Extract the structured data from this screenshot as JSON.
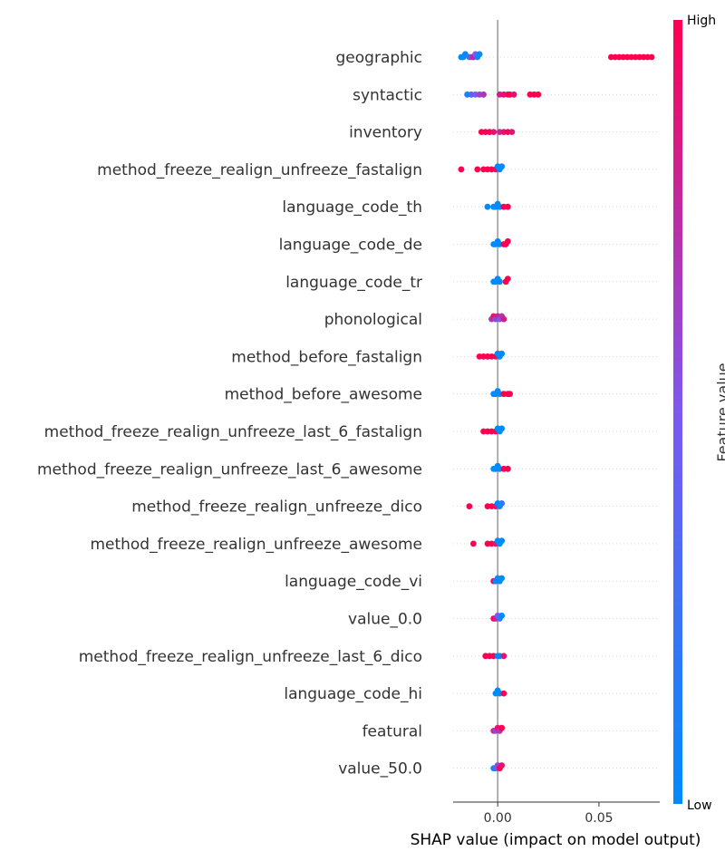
{
  "chart_data": {
    "type": "scatter",
    "subtype": "shap_beeswarm_summary",
    "xlabel": "SHAP value (impact on model output)",
    "xticks": [
      0.0,
      0.05
    ],
    "xtick_labels": [
      "0.00",
      "0.05"
    ],
    "xlim": [
      -0.022,
      0.08
    ],
    "zero_line": true,
    "grid": "dotted horizontal row guides",
    "colorbar": {
      "title": "Feature value",
      "high_label": "High",
      "low_label": "Low",
      "low_color": "#008bfb",
      "high_color": "#ff0051"
    },
    "features": [
      {
        "name": "geographic",
        "points": [
          {
            "x": -0.018,
            "v": 0.0
          },
          {
            "x": -0.017,
            "v": 0.0
          },
          {
            "x": -0.016,
            "v": 0.05
          },
          {
            "x": -0.014,
            "v": 0.3
          },
          {
            "x": -0.013,
            "v": 0.6
          },
          {
            "x": -0.012,
            "v": 0.8
          },
          {
            "x": -0.011,
            "v": 0.5
          },
          {
            "x": -0.01,
            "v": 0.1
          },
          {
            "x": -0.009,
            "v": 0.0
          },
          {
            "x": 0.056,
            "v": 1.0
          },
          {
            "x": 0.058,
            "v": 1.0
          },
          {
            "x": 0.06,
            "v": 1.0
          },
          {
            "x": 0.062,
            "v": 1.0
          },
          {
            "x": 0.064,
            "v": 1.0
          },
          {
            "x": 0.066,
            "v": 1.0
          },
          {
            "x": 0.068,
            "v": 1.0
          },
          {
            "x": 0.07,
            "v": 1.0
          },
          {
            "x": 0.072,
            "v": 1.0
          },
          {
            "x": 0.074,
            "v": 1.0
          },
          {
            "x": 0.076,
            "v": 1.0
          }
        ]
      },
      {
        "name": "syntactic",
        "points": [
          {
            "x": -0.015,
            "v": 0.1
          },
          {
            "x": -0.013,
            "v": 0.3
          },
          {
            "x": -0.011,
            "v": 0.5
          },
          {
            "x": -0.009,
            "v": 0.6
          },
          {
            "x": -0.007,
            "v": 0.7
          },
          {
            "x": 0.001,
            "v": 0.85
          },
          {
            "x": 0.003,
            "v": 0.9
          },
          {
            "x": 0.005,
            "v": 0.95
          },
          {
            "x": 0.006,
            "v": 1.0
          },
          {
            "x": 0.008,
            "v": 0.9
          },
          {
            "x": 0.016,
            "v": 1.0
          },
          {
            "x": 0.018,
            "v": 1.0
          },
          {
            "x": 0.02,
            "v": 1.0
          }
        ]
      },
      {
        "name": "inventory",
        "points": [
          {
            "x": -0.008,
            "v": 1.0
          },
          {
            "x": -0.006,
            "v": 1.0
          },
          {
            "x": -0.004,
            "v": 1.0
          },
          {
            "x": -0.002,
            "v": 0.9
          },
          {
            "x": 0.001,
            "v": 0.8
          },
          {
            "x": 0.003,
            "v": 0.9
          },
          {
            "x": 0.005,
            "v": 1.0
          },
          {
            "x": 0.007,
            "v": 0.9
          }
        ]
      },
      {
        "name": "method_freeze_realign_unfreeze_fastalign",
        "points": [
          {
            "x": -0.018,
            "v": 1.0
          },
          {
            "x": -0.01,
            "v": 1.0
          },
          {
            "x": -0.007,
            "v": 1.0
          },
          {
            "x": -0.005,
            "v": 1.0
          },
          {
            "x": -0.003,
            "v": 1.0
          },
          {
            "x": -0.001,
            "v": 1.0
          },
          {
            "x": 0.0,
            "v": 0.0
          },
          {
            "x": 0.001,
            "v": 0.0
          },
          {
            "x": 0.002,
            "v": 0.05
          }
        ]
      },
      {
        "name": "language_code_th",
        "points": [
          {
            "x": -0.005,
            "v": 0.0
          },
          {
            "x": -0.002,
            "v": 0.0
          },
          {
            "x": -0.001,
            "v": 0.0
          },
          {
            "x": 0.0,
            "v": 0.0
          },
          {
            "x": 0.001,
            "v": 0.0
          },
          {
            "x": 0.003,
            "v": 1.0
          },
          {
            "x": 0.005,
            "v": 1.0
          }
        ]
      },
      {
        "name": "language_code_de",
        "points": [
          {
            "x": -0.002,
            "v": 0.0
          },
          {
            "x": -0.001,
            "v": 0.0
          },
          {
            "x": 0.0,
            "v": 0.0
          },
          {
            "x": 0.001,
            "v": 0.0
          },
          {
            "x": 0.003,
            "v": 1.0
          },
          {
            "x": 0.004,
            "v": 1.0
          },
          {
            "x": 0.005,
            "v": 1.0
          }
        ]
      },
      {
        "name": "language_code_tr",
        "points": [
          {
            "x": -0.002,
            "v": 0.0
          },
          {
            "x": -0.001,
            "v": 0.0
          },
          {
            "x": 0.0,
            "v": 0.0
          },
          {
            "x": 0.001,
            "v": 0.0
          },
          {
            "x": 0.004,
            "v": 1.0
          },
          {
            "x": 0.005,
            "v": 1.0
          }
        ]
      },
      {
        "name": "phonological",
        "points": [
          {
            "x": -0.003,
            "v": 0.7
          },
          {
            "x": -0.002,
            "v": 0.9
          },
          {
            "x": -0.001,
            "v": 0.6
          },
          {
            "x": 0.0,
            "v": 0.8
          },
          {
            "x": 0.001,
            "v": 0.5
          },
          {
            "x": 0.002,
            "v": 0.7
          },
          {
            "x": 0.003,
            "v": 0.85
          }
        ]
      },
      {
        "name": "method_before_fastalign",
        "points": [
          {
            "x": -0.009,
            "v": 1.0
          },
          {
            "x": -0.007,
            "v": 1.0
          },
          {
            "x": -0.005,
            "v": 1.0
          },
          {
            "x": -0.003,
            "v": 1.0
          },
          {
            "x": -0.001,
            "v": 1.0
          },
          {
            "x": 0.0,
            "v": 0.0
          },
          {
            "x": 0.001,
            "v": 0.0
          },
          {
            "x": 0.002,
            "v": 0.0
          }
        ]
      },
      {
        "name": "method_before_awesome",
        "points": [
          {
            "x": -0.002,
            "v": 0.0
          },
          {
            "x": -0.001,
            "v": 0.0
          },
          {
            "x": 0.0,
            "v": 0.0
          },
          {
            "x": 0.001,
            "v": 0.0
          },
          {
            "x": 0.003,
            "v": 1.0
          },
          {
            "x": 0.005,
            "v": 1.0
          },
          {
            "x": 0.006,
            "v": 1.0
          }
        ]
      },
      {
        "name": "method_freeze_realign_unfreeze_last_6_fastalign",
        "points": [
          {
            "x": -0.007,
            "v": 1.0
          },
          {
            "x": -0.005,
            "v": 1.0
          },
          {
            "x": -0.003,
            "v": 1.0
          },
          {
            "x": -0.001,
            "v": 1.0
          },
          {
            "x": 0.0,
            "v": 0.0
          },
          {
            "x": 0.001,
            "v": 0.0
          },
          {
            "x": 0.002,
            "v": 0.0
          }
        ]
      },
      {
        "name": "method_freeze_realign_unfreeze_last_6_awesome",
        "points": [
          {
            "x": -0.002,
            "v": 0.0
          },
          {
            "x": -0.001,
            "v": 0.0
          },
          {
            "x": 0.0,
            "v": 0.0
          },
          {
            "x": 0.001,
            "v": 0.0
          },
          {
            "x": 0.003,
            "v": 1.0
          },
          {
            "x": 0.005,
            "v": 1.0
          }
        ]
      },
      {
        "name": "method_freeze_realign_unfreeze_dico",
        "points": [
          {
            "x": -0.014,
            "v": 1.0
          },
          {
            "x": -0.005,
            "v": 1.0
          },
          {
            "x": -0.003,
            "v": 1.0
          },
          {
            "x": -0.001,
            "v": 0.9
          },
          {
            "x": 0.0,
            "v": 0.0
          },
          {
            "x": 0.001,
            "v": 0.0
          },
          {
            "x": 0.002,
            "v": 0.2
          }
        ]
      },
      {
        "name": "method_freeze_realign_unfreeze_awesome",
        "points": [
          {
            "x": -0.012,
            "v": 1.0
          },
          {
            "x": -0.005,
            "v": 1.0
          },
          {
            "x": -0.003,
            "v": 1.0
          },
          {
            "x": -0.001,
            "v": 0.9
          },
          {
            "x": 0.0,
            "v": 0.0
          },
          {
            "x": 0.001,
            "v": 0.0
          },
          {
            "x": 0.002,
            "v": 0.0
          }
        ]
      },
      {
        "name": "language_code_vi",
        "points": [
          {
            "x": -0.002,
            "v": 1.0
          },
          {
            "x": -0.001,
            "v": 0.0
          },
          {
            "x": 0.0,
            "v": 0.0
          },
          {
            "x": 0.001,
            "v": 0.0
          },
          {
            "x": 0.002,
            "v": 0.0
          }
        ]
      },
      {
        "name": "value_0.0",
        "points": [
          {
            "x": -0.002,
            "v": 1.0
          },
          {
            "x": -0.001,
            "v": 0.8
          },
          {
            "x": 0.0,
            "v": 0.5
          },
          {
            "x": 0.001,
            "v": 0.2
          },
          {
            "x": 0.002,
            "v": 0.0
          }
        ]
      },
      {
        "name": "method_freeze_realign_unfreeze_last_6_dico",
        "points": [
          {
            "x": -0.006,
            "v": 1.0
          },
          {
            "x": -0.004,
            "v": 1.0
          },
          {
            "x": -0.002,
            "v": 1.0
          },
          {
            "x": 0.0,
            "v": 0.0
          },
          {
            "x": 0.001,
            "v": 0.0
          },
          {
            "x": 0.003,
            "v": 0.9
          }
        ]
      },
      {
        "name": "language_code_hi",
        "points": [
          {
            "x": -0.001,
            "v": 0.0
          },
          {
            "x": 0.0,
            "v": 0.0
          },
          {
            "x": 0.001,
            "v": 0.0
          },
          {
            "x": 0.003,
            "v": 1.0
          }
        ]
      },
      {
        "name": "featural",
        "points": [
          {
            "x": -0.002,
            "v": 0.8
          },
          {
            "x": -0.001,
            "v": 0.6
          },
          {
            "x": 0.0,
            "v": 0.9
          },
          {
            "x": 0.001,
            "v": 0.7
          },
          {
            "x": 0.002,
            "v": 1.0
          }
        ]
      },
      {
        "name": "value_50.0",
        "points": [
          {
            "x": -0.002,
            "v": 0.0
          },
          {
            "x": -0.001,
            "v": 0.3
          },
          {
            "x": 0.0,
            "v": 0.6
          },
          {
            "x": 0.001,
            "v": 1.0
          },
          {
            "x": 0.002,
            "v": 0.9
          }
        ]
      }
    ]
  }
}
